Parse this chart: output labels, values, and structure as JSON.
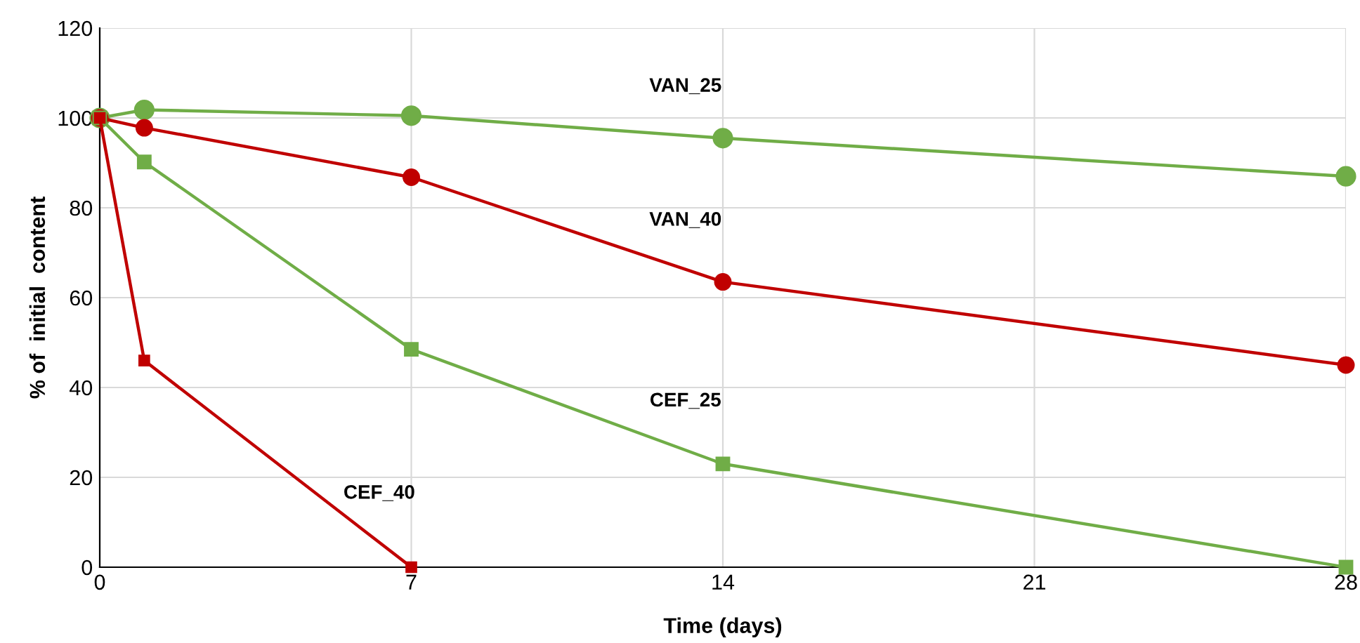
{
  "chart_data": {
    "type": "line",
    "xlabel": "Time (days)",
    "ylabel": "% of  initial  content",
    "xlim": [
      0,
      28
    ],
    "xticks": [
      0,
      7,
      14,
      21,
      28
    ],
    "ylim": [
      0,
      120
    ],
    "yticks": [
      0,
      20,
      40,
      60,
      80,
      100,
      120
    ],
    "grid": true,
    "series": [
      {
        "name": "VAN_25",
        "color": "#70ad47",
        "marker": "circle",
        "x": [
          0,
          1,
          7,
          14,
          28
        ],
        "values": [
          100,
          101.8,
          100.5,
          95.5,
          87
        ]
      },
      {
        "name": "VAN_40",
        "color": "#c00000",
        "marker": "circle",
        "x": [
          0,
          1,
          7,
          14,
          28
        ],
        "values": [
          100,
          97.8,
          86.8,
          63.5,
          45
        ]
      },
      {
        "name": "CEF_25",
        "color": "#70ad47",
        "marker": "square",
        "x": [
          0,
          1,
          7,
          14,
          28
        ],
        "values": [
          100,
          90.2,
          48.5,
          23,
          0
        ]
      },
      {
        "name": "CEF_40",
        "color": "#c00000",
        "marker": "square",
        "x": [
          0,
          1,
          7
        ],
        "values": [
          100,
          46,
          0
        ]
      }
    ]
  }
}
